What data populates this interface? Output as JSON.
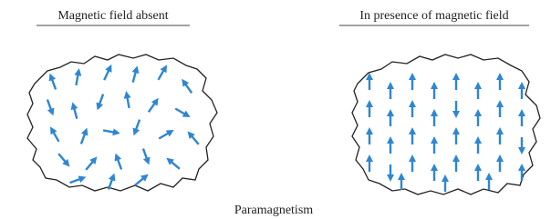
{
  "panels": [
    {
      "title": "Magnetic field absent"
    },
    {
      "title": "In presence of magnetic field"
    }
  ],
  "caption": "Paramagnetism"
}
